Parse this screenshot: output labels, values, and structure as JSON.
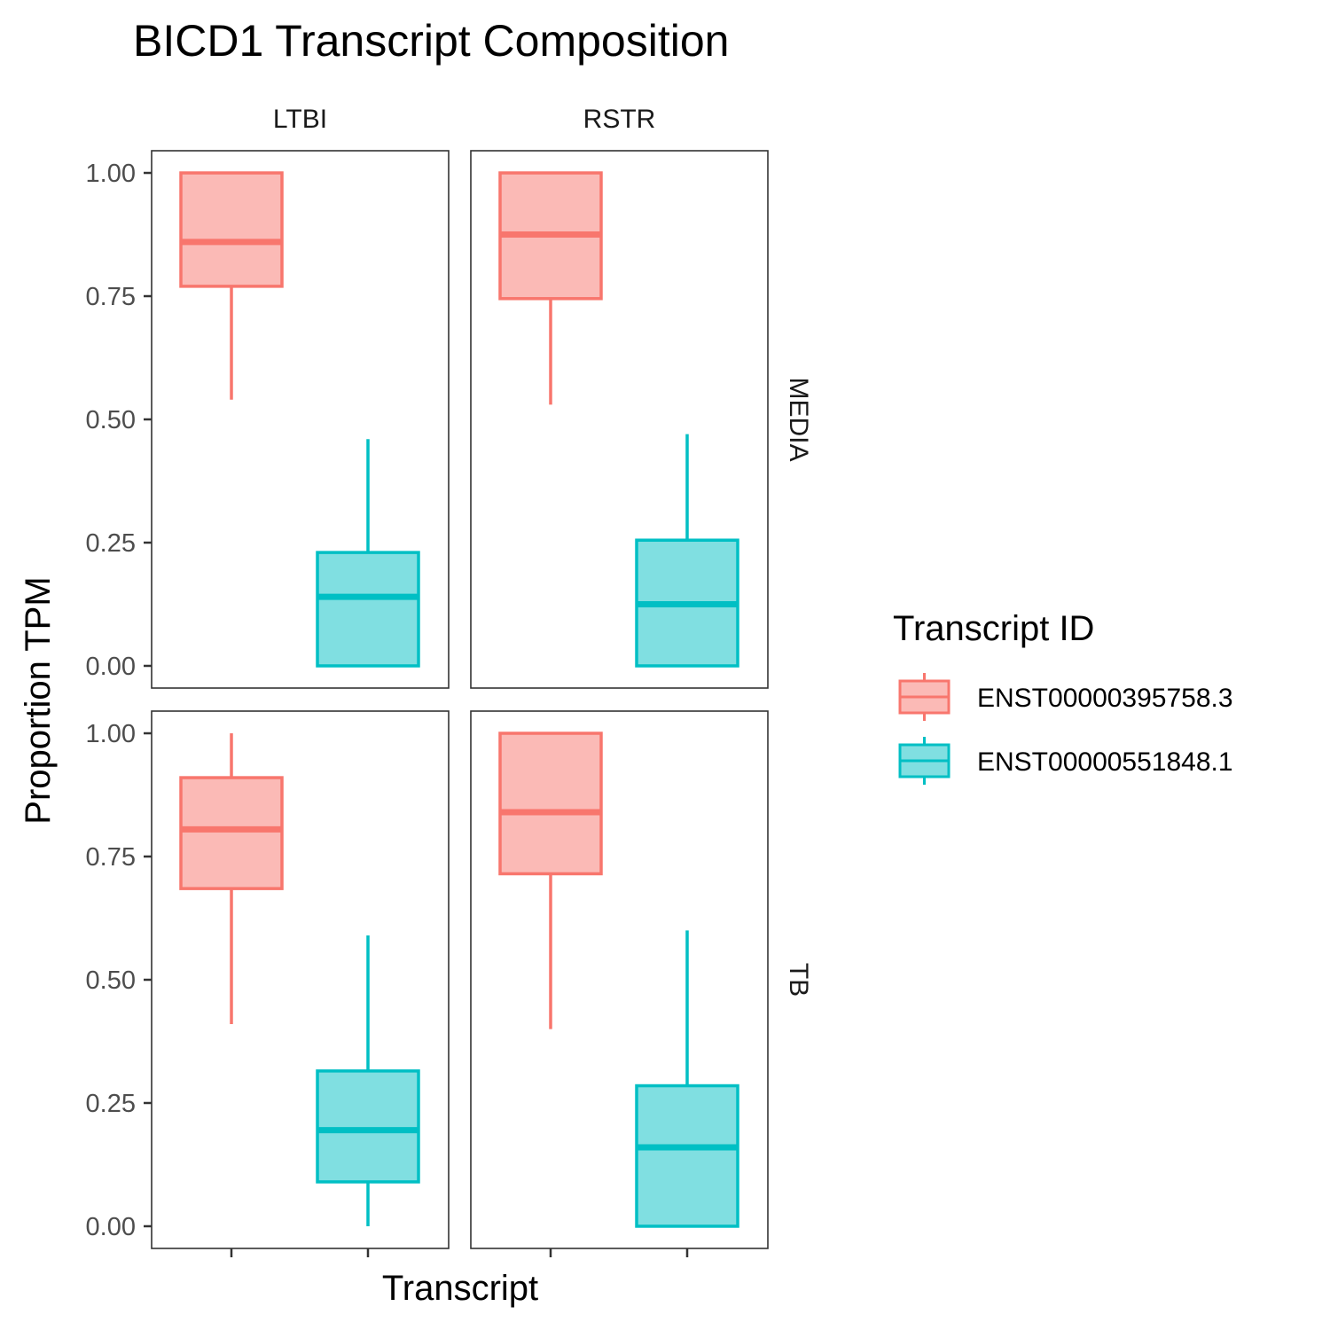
{
  "chart_data": {
    "type": "boxplot",
    "title": "BICD1 Transcript Composition",
    "xlabel": "Transcript",
    "ylabel": "Proportion TPM",
    "ylim": [
      -0.045,
      1.045
    ],
    "yticks": [
      "0.00",
      "0.25",
      "0.50",
      "0.75",
      "1.00"
    ],
    "ytick_values": [
      0,
      0.25,
      0.5,
      0.75,
      1.0
    ],
    "columns": [
      "LTBI",
      "RSTR"
    ],
    "rows": [
      "MEDIA",
      "TB"
    ],
    "grid": false,
    "legend": {
      "title": "Transcript ID",
      "position": "right",
      "entries": [
        "ENST00000395758.3",
        "ENST00000551848.1"
      ]
    },
    "series": [
      {
        "name": "ENST00000395758.3",
        "stroke": "#F8766D",
        "fill": "#FBBAB6"
      },
      {
        "name": "ENST00000551848.1",
        "stroke": "#00BFC4",
        "fill": "#80DFE1"
      }
    ],
    "panels": [
      {
        "col": "LTBI",
        "row": "MEDIA",
        "boxes": [
          {
            "series": "ENST00000395758.3",
            "min": 0.54,
            "q1": 0.77,
            "median": 0.86,
            "q3": 1.0,
            "max": 1.0
          },
          {
            "series": "ENST00000551848.1",
            "min": 0.0,
            "q1": 0.0,
            "median": 0.14,
            "q3": 0.23,
            "max": 0.46
          }
        ]
      },
      {
        "col": "RSTR",
        "row": "MEDIA",
        "boxes": [
          {
            "series": "ENST00000395758.3",
            "min": 0.53,
            "q1": 0.745,
            "median": 0.875,
            "q3": 1.0,
            "max": 1.0
          },
          {
            "series": "ENST00000551848.1",
            "min": 0.0,
            "q1": 0.0,
            "median": 0.125,
            "q3": 0.255,
            "max": 0.47
          }
        ]
      },
      {
        "col": "LTBI",
        "row": "TB",
        "boxes": [
          {
            "series": "ENST00000395758.3",
            "min": 0.41,
            "q1": 0.685,
            "median": 0.805,
            "q3": 0.91,
            "max": 1.0
          },
          {
            "series": "ENST00000551848.1",
            "min": 0.0,
            "q1": 0.09,
            "median": 0.195,
            "q3": 0.315,
            "max": 0.59
          }
        ]
      },
      {
        "col": "RSTR",
        "row": "TB",
        "boxes": [
          {
            "series": "ENST00000395758.3",
            "min": 0.4,
            "q1": 0.715,
            "median": 0.84,
            "q3": 1.0,
            "max": 1.0
          },
          {
            "series": "ENST00000551848.1",
            "min": 0.0,
            "q1": 0.0,
            "median": 0.16,
            "q3": 0.285,
            "max": 0.6
          }
        ]
      }
    ]
  }
}
